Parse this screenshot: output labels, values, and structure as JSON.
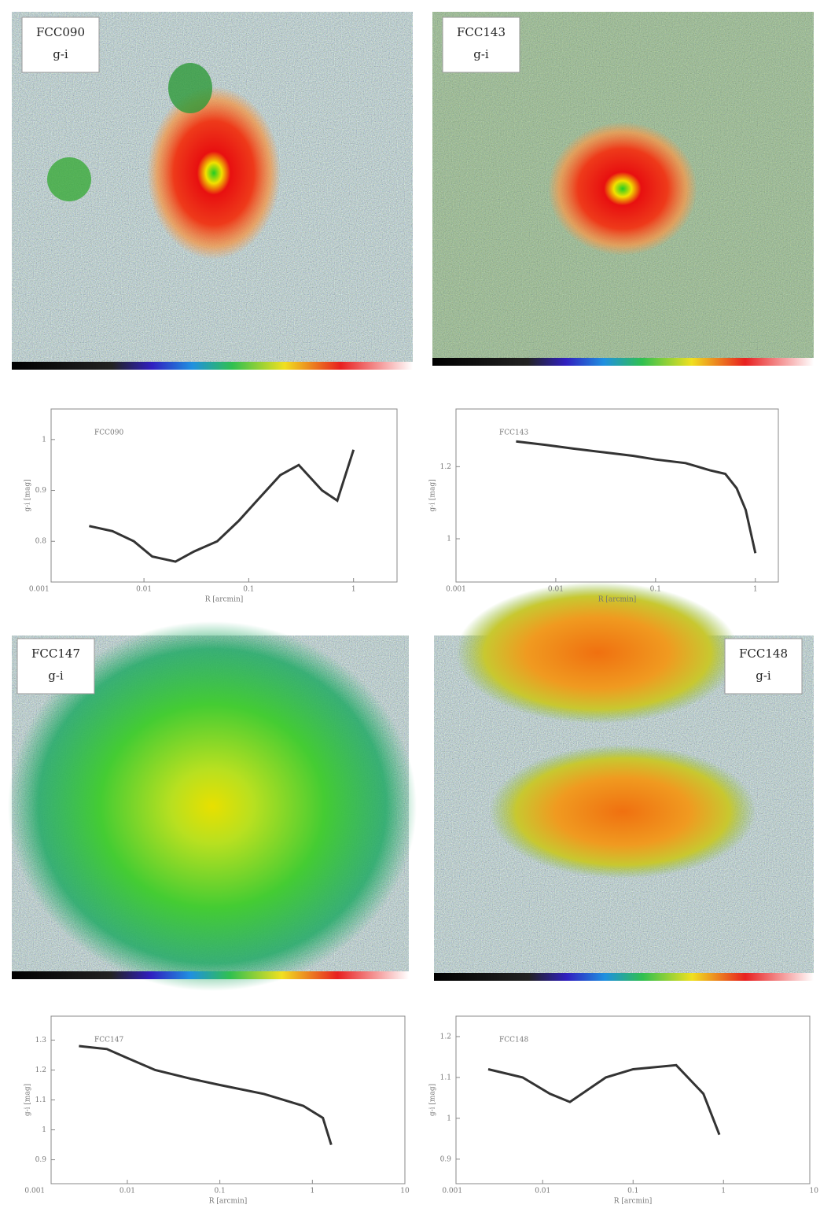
{
  "panels": [
    {
      "name": "FCC090",
      "band": "g-i"
    },
    {
      "name": "FCC143",
      "band": "g-i"
    },
    {
      "name": "FCC147",
      "band": "g-i"
    },
    {
      "name": "FCC148",
      "band": "g-i"
    }
  ],
  "chart_data": [
    {
      "type": "line",
      "title": "FCC090",
      "xlabel": "R [arcmin]",
      "ylabel": "g-i [mag]",
      "log_x": true,
      "x": [
        0.003,
        0.005,
        0.008,
        0.012,
        0.02,
        0.03,
        0.05,
        0.08,
        0.12,
        0.2,
        0.3,
        0.5,
        0.7,
        1.0
      ],
      "series": [
        {
          "name": "FCC090",
          "color": "#333333",
          "values": [
            0.83,
            0.82,
            0.8,
            0.77,
            0.76,
            0.78,
            0.8,
            0.84,
            0.88,
            0.93,
            0.95,
            0.9,
            0.88,
            0.98
          ]
        }
      ],
      "xlim": [
        0.0013,
        2.6
      ],
      "ylim": [
        0.72,
        1.06
      ],
      "xticks": [
        0.001,
        0.01,
        0.1,
        1
      ],
      "yticks": [
        0.8,
        0.9,
        1.0
      ]
    },
    {
      "type": "line",
      "title": "FCC143",
      "xlabel": "R [arcmin]",
      "ylabel": "g-i [mag]",
      "log_x": true,
      "x": [
        0.004,
        0.008,
        0.015,
        0.03,
        0.06,
        0.1,
        0.2,
        0.35,
        0.5,
        0.65,
        0.8,
        1.0
      ],
      "series": [
        {
          "name": "FCC143",
          "color": "#333333",
          "values": [
            1.27,
            1.26,
            1.25,
            1.24,
            1.23,
            1.22,
            1.21,
            1.19,
            1.18,
            1.14,
            1.08,
            0.96
          ]
        }
      ],
      "xlim": [
        0.001,
        1.7
      ],
      "ylim": [
        0.88,
        1.36
      ],
      "xticks": [
        0.001,
        0.01,
        0.1,
        1
      ],
      "yticks": [
        1.0,
        1.2
      ]
    },
    {
      "type": "line",
      "title": "FCC147",
      "xlabel": "R [arcmin]",
      "ylabel": "g-i [mag]",
      "log_x": true,
      "x": [
        0.003,
        0.006,
        0.01,
        0.02,
        0.05,
        0.1,
        0.3,
        0.8,
        1.3,
        1.6
      ],
      "series": [
        {
          "name": "FCC147",
          "color": "#333333",
          "values": [
            1.28,
            1.27,
            1.24,
            1.2,
            1.17,
            1.15,
            1.12,
            1.08,
            1.04,
            0.95
          ]
        }
      ],
      "xlim": [
        0.0015,
        10
      ],
      "ylim": [
        0.82,
        1.38
      ],
      "xticks": [
        0.001,
        0.01,
        0.1,
        1,
        10
      ],
      "yticks": [
        0.9,
        1.0,
        1.1,
        1.2,
        1.3
      ]
    },
    {
      "type": "line",
      "title": "FCC148",
      "xlabel": "R [arcmin]",
      "ylabel": "g-i [mag]",
      "log_x": true,
      "x": [
        0.0025,
        0.006,
        0.012,
        0.02,
        0.05,
        0.1,
        0.3,
        0.6,
        0.9
      ],
      "series": [
        {
          "name": "FCC148",
          "color": "#333333",
          "values": [
            1.12,
            1.1,
            1.06,
            1.04,
            1.1,
            1.12,
            1.13,
            1.06,
            0.96
          ]
        }
      ],
      "xlim": [
        0.0011,
        9
      ],
      "ylim": [
        0.84,
        1.25
      ],
      "xticks": [
        0.001,
        0.01,
        0.1,
        1,
        10
      ],
      "yticks": [
        0.9,
        1.0,
        1.1,
        1.2
      ]
    }
  ]
}
